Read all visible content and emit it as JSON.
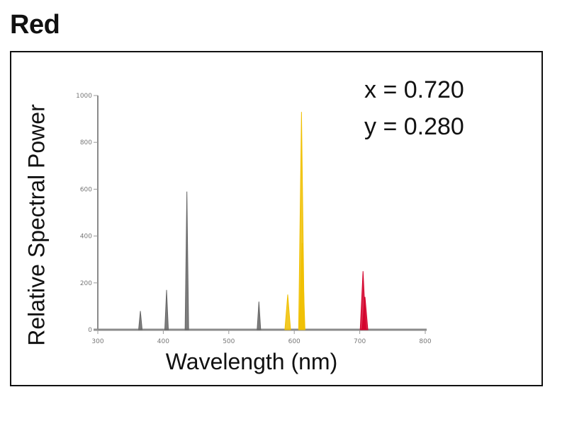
{
  "title": "Red",
  "coords": {
    "x_text": "x = 0.720",
    "y_text": "y = 0.280"
  },
  "chart_data": {
    "type": "line",
    "title": "",
    "xlabel": "Wavelength (nm)",
    "ylabel": "Relative Spectral Power",
    "xlim": [
      300,
      800
    ],
    "ylim": [
      0,
      1000
    ],
    "x_ticks": [
      "300",
      "400",
      "500",
      "600",
      "700",
      "800"
    ],
    "y_ticks": [
      "0",
      "200",
      "400",
      "600",
      "800",
      "1000"
    ],
    "grid": false,
    "legend": "none",
    "series": [
      {
        "color": "#666666",
        "peaks": [
          {
            "x": 365,
            "y": 80
          },
          {
            "x": 405,
            "y": 170
          },
          {
            "x": 436,
            "y": 590
          },
          {
            "x": 546,
            "y": 120
          }
        ]
      },
      {
        "color": "#f0c000",
        "peaks": [
          {
            "x": 590,
            "y": 150
          },
          {
            "x": 611,
            "y": 930
          },
          {
            "x": 612,
            "y": 370
          }
        ]
      },
      {
        "color": "#d4002a",
        "peaks": [
          {
            "x": 705,
            "y": 250
          },
          {
            "x": 708,
            "y": 140
          }
        ]
      }
    ]
  }
}
